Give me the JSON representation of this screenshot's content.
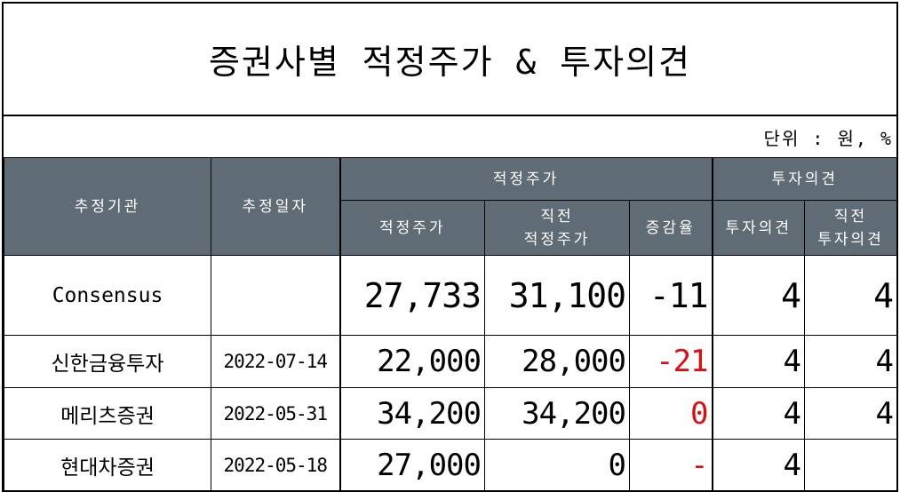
{
  "title": "증권사별 적정주가 & 투자의견",
  "unit_label": "단위 : 원, %",
  "headers": {
    "agency": "추정기관",
    "date": "추정일자",
    "target_price_group": "적정주가",
    "opinion_group": "투자의견",
    "target_price": "적정주가",
    "prev_target_line1": "직전",
    "prev_target_line2": "적정주가",
    "change_rate": "증감율",
    "opinion": "투자의견",
    "prev_opinion_line1": "직전",
    "prev_opinion_line2": "투자의견"
  },
  "rows": [
    {
      "agency": "Consensus",
      "date": "",
      "target": "27,733",
      "prev_target": "31,100",
      "change": "-11",
      "opinion": "4",
      "prev_opinion": "4"
    },
    {
      "agency": "신한금융투자",
      "date": "2022-07-14",
      "target": "22,000",
      "prev_target": "28,000",
      "change": "-21",
      "opinion": "4",
      "prev_opinion": "4"
    },
    {
      "agency": "메리츠증권",
      "date": "2022-05-31",
      "target": "34,200",
      "prev_target": "34,200",
      "change": "0",
      "opinion": "4",
      "prev_opinion": "4"
    },
    {
      "agency": "현대차증권",
      "date": "2022-05-18",
      "target": "27,000",
      "prev_target": "0",
      "change": "-",
      "opinion": "4",
      "prev_opinion": ""
    }
  ],
  "colors": {
    "header_bg": "#5f6b75",
    "negative": "#d81010"
  }
}
